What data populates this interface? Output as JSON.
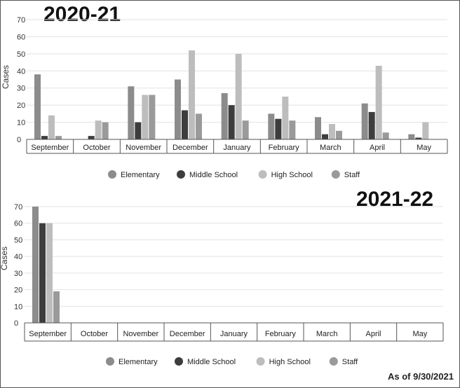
{
  "chart_data": [
    {
      "type": "bar",
      "title": "2020-21",
      "xlabel": "",
      "ylabel": "Cases",
      "ylim": [
        0,
        70
      ],
      "yticks": [
        0,
        10,
        20,
        30,
        40,
        50,
        60,
        70
      ],
      "categories": [
        "September",
        "October",
        "November",
        "December",
        "January",
        "February",
        "March",
        "April",
        "May"
      ],
      "series": [
        {
          "name": "Elementary",
          "color": "#8c8c8c",
          "values": [
            38,
            0,
            31,
            35,
            27,
            15,
            13,
            21,
            3
          ]
        },
        {
          "name": "Middle School",
          "color": "#3d3d3d",
          "values": [
            2,
            2,
            10,
            17,
            20,
            12,
            3,
            16,
            1
          ]
        },
        {
          "name": "High School",
          "color": "#bdbdbd",
          "values": [
            14,
            11,
            26,
            52,
            50,
            25,
            9,
            43,
            10
          ]
        },
        {
          "name": "Staff",
          "color": "#9a9a9a",
          "values": [
            2,
            10,
            26,
            15,
            11,
            11,
            5,
            4,
            0
          ]
        }
      ],
      "grid": true,
      "legend": "bottom"
    },
    {
      "type": "bar",
      "title": "2021-22",
      "xlabel": "",
      "ylabel": "Cases",
      "ylim": [
        0,
        70
      ],
      "yticks": [
        0,
        10,
        20,
        30,
        40,
        50,
        60,
        70
      ],
      "categories": [
        "September",
        "October",
        "November",
        "December",
        "January",
        "February",
        "March",
        "April",
        "May"
      ],
      "series": [
        {
          "name": "Elementary",
          "color": "#8c8c8c",
          "values": [
            70,
            0,
            0,
            0,
            0,
            0,
            0,
            0,
            0
          ]
        },
        {
          "name": "Middle School",
          "color": "#3d3d3d",
          "values": [
            60,
            0,
            0,
            0,
            0,
            0,
            0,
            0,
            0
          ]
        },
        {
          "name": "High School",
          "color": "#bdbdbd",
          "values": [
            60,
            0,
            0,
            0,
            0,
            0,
            0,
            0,
            0
          ]
        },
        {
          "name": "Staff",
          "color": "#9a9a9a",
          "values": [
            19,
            0,
            0,
            0,
            0,
            0,
            0,
            0,
            0
          ]
        }
      ],
      "grid": true,
      "legend": "bottom"
    }
  ],
  "footnote": "As of 9/30/2021"
}
